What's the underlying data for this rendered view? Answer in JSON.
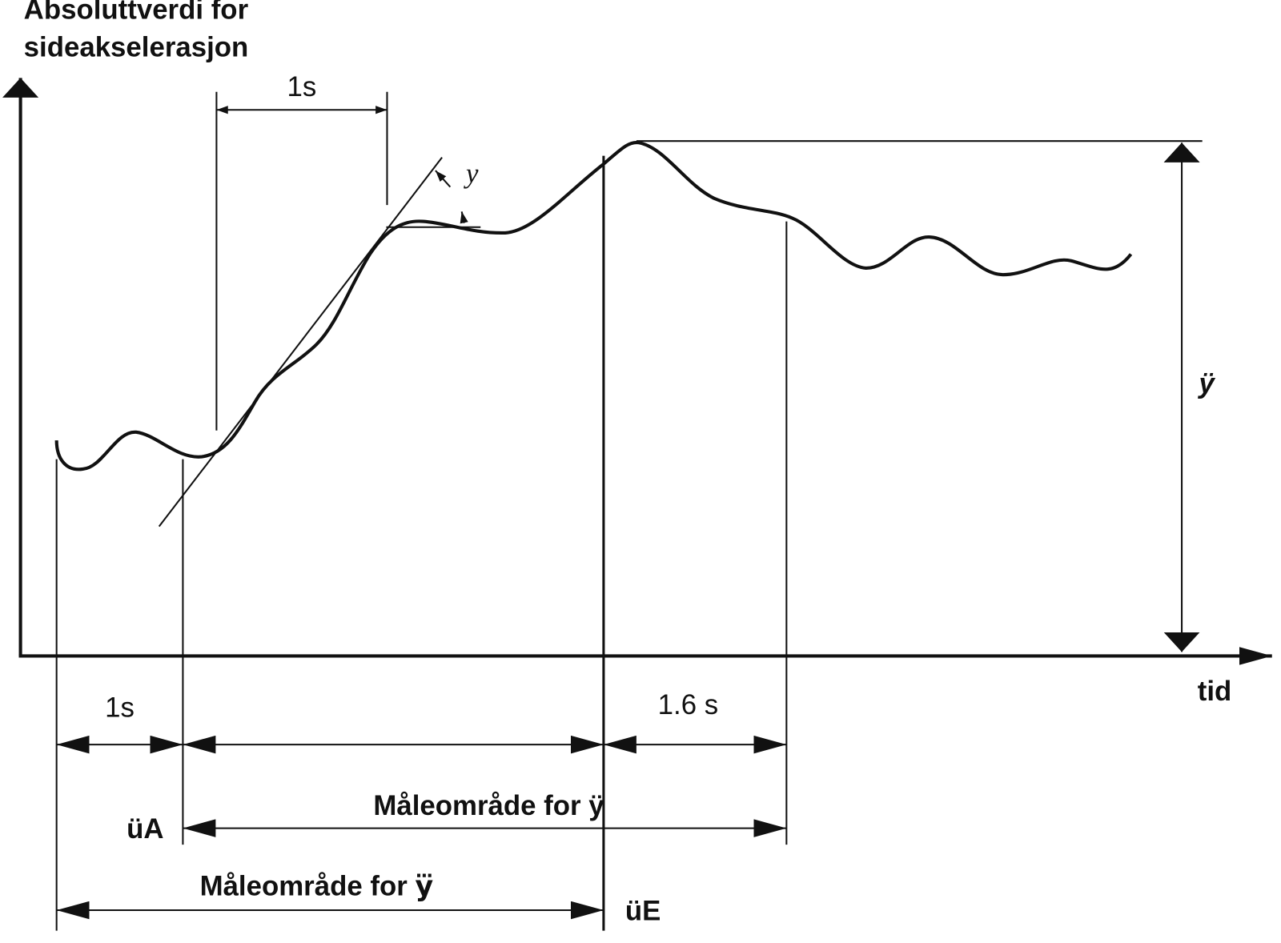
{
  "y_axis_label": [
    "Absoluttverdi for",
    "sideakselerasjon"
  ],
  "x_axis_label": "tid",
  "top_interval": "1s",
  "jerk_symbol": "y⃛",
  "peak_symbol": "ÿ",
  "bottom_intervals": {
    "first": "1s",
    "last": "1.6 s"
  },
  "range_peak": "Måleområde for ÿ",
  "range_jerk": "Måleområde for y⃛",
  "start_marker": "üA",
  "end_marker": "üE"
}
